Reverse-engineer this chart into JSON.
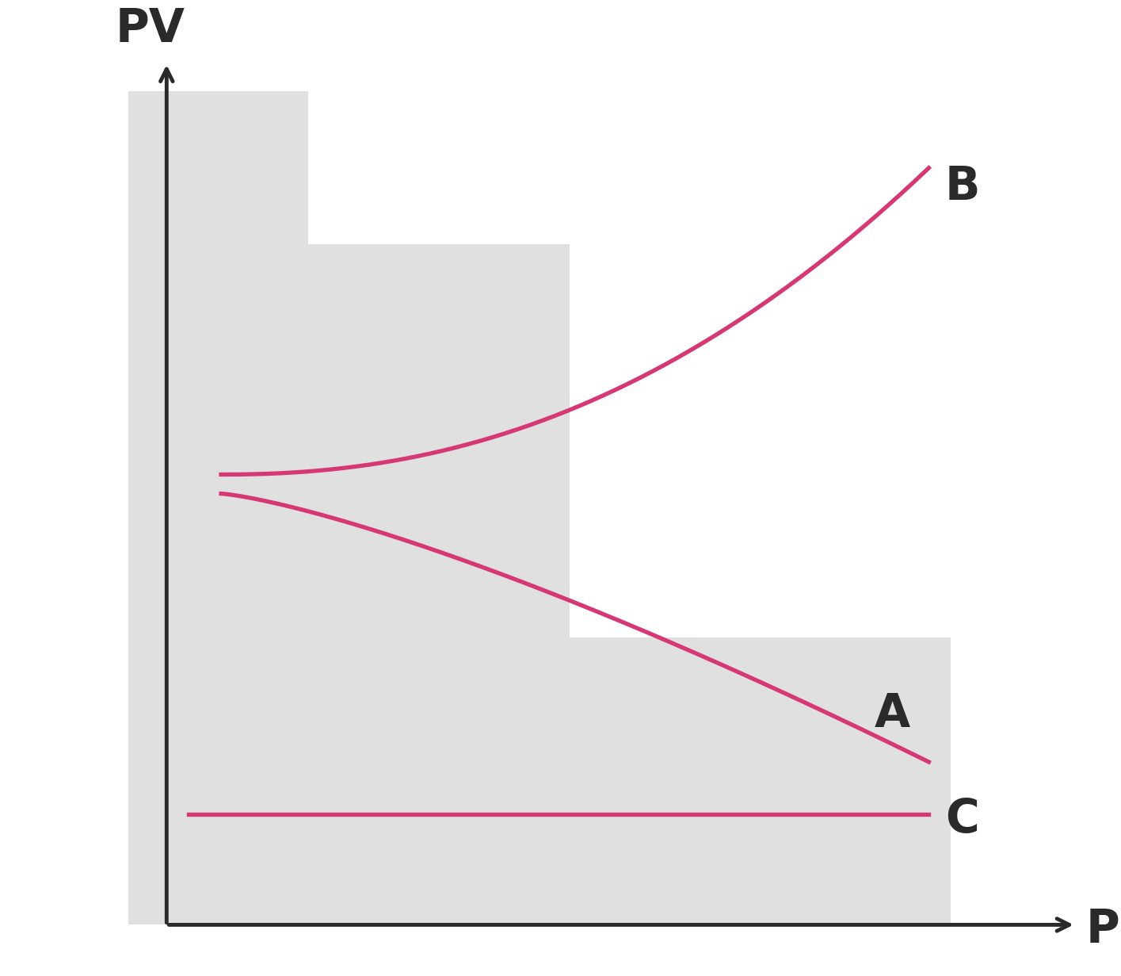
{
  "ylabel": "PV",
  "xlabel": "P",
  "bg_color": "#e0e0e0",
  "curve_color": "#d63875",
  "label_color": "#2a2a2a",
  "curve_B_label": "B",
  "curve_A_label": "A",
  "curve_C_label": "C",
  "fig_width": 14.15,
  "fig_height": 12.31,
  "axis_color": "#2a2a2a",
  "label_fontsize": 42,
  "curve_linewidth": 3.8,
  "white": "#ffffff"
}
